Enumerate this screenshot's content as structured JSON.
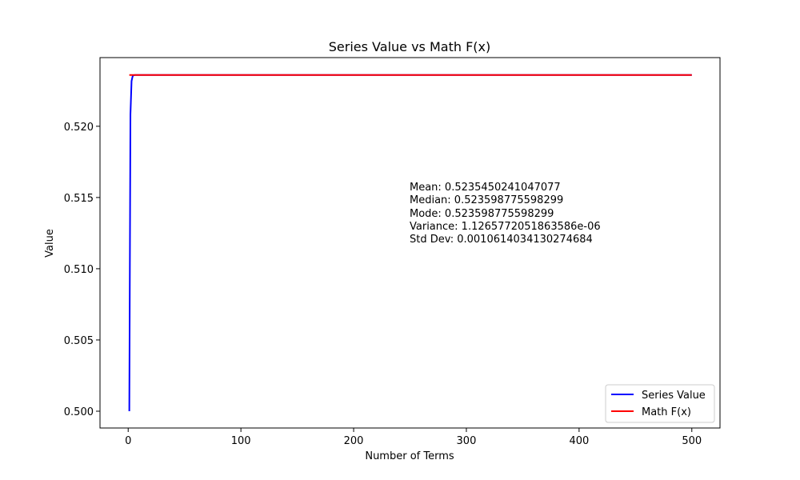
{
  "chart_data": {
    "type": "line",
    "title": "Series Value vs Math F(x)",
    "xlabel": "Number of Terms",
    "ylabel": "Value",
    "xlim": [
      -25,
      525
    ],
    "ylim": [
      0.49882,
      0.52482
    ],
    "xticks": [
      0,
      100,
      200,
      300,
      400,
      500
    ],
    "xtick_labels": [
      "0",
      "100",
      "200",
      "300",
      "400",
      "500"
    ],
    "yticks": [
      0.5,
      0.505,
      0.51,
      0.515,
      0.52
    ],
    "ytick_labels": [
      "0.500",
      "0.505",
      "0.510",
      "0.515",
      "0.520"
    ],
    "grid": false,
    "legend": {
      "placement": "lower-right"
    },
    "series": [
      {
        "name": "Series Value",
        "color": "#0000ff",
        "x": [
          1,
          2,
          3,
          4,
          5,
          6,
          7,
          8,
          10,
          15,
          20,
          30,
          50,
          100,
          200,
          300,
          400,
          500
        ],
        "y": [
          0.5,
          0.520833,
          0.523177,
          0.523526,
          0.523585,
          0.523596,
          0.523598,
          0.5235987,
          0.5235988,
          0.5235988,
          0.5235988,
          0.5235988,
          0.5235988,
          0.5235988,
          0.5235988,
          0.5235988,
          0.5235988,
          0.5235988
        ]
      },
      {
        "name": "Math F(x)",
        "color": "#ff0000",
        "x": [
          1,
          500
        ],
        "y": [
          0.523598775598299,
          0.523598775598299
        ]
      }
    ],
    "annotation": {
      "lines": [
        "Mean: 0.5235450241047077",
        "Median: 0.523598775598299",
        "Mode: 0.523598775598299",
        "Variance: 1.1265772051863586e-06",
        "Std Dev: 0.0010614034130274684"
      ]
    }
  }
}
